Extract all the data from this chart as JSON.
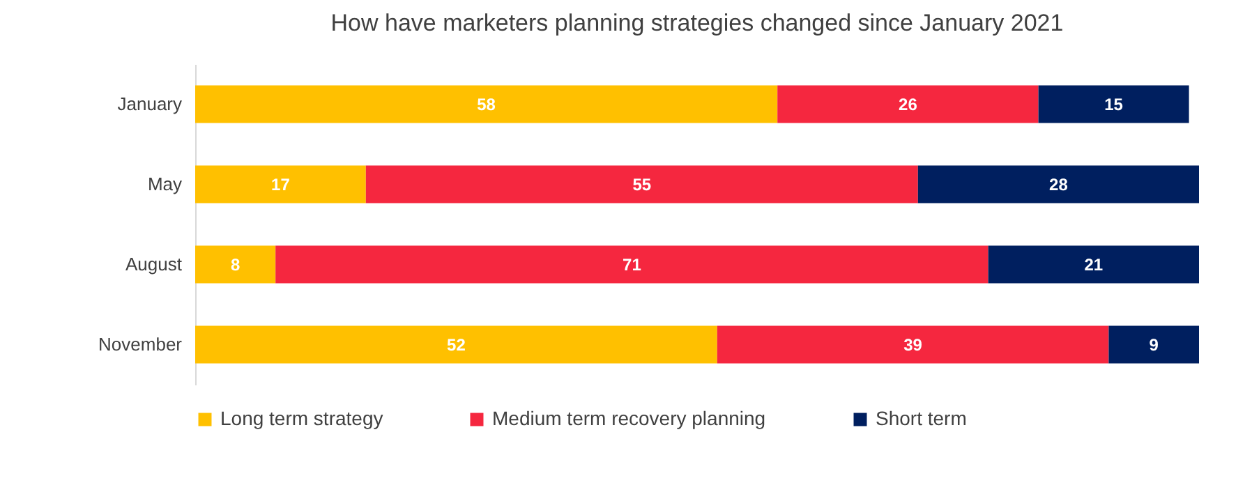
{
  "chart_data": {
    "type": "bar",
    "orientation": "horizontal",
    "stacked": true,
    "title": "How have marketers planning strategies changed since January 2021",
    "categories": [
      "January",
      "May",
      "August",
      "November"
    ],
    "series": [
      {
        "name": "Long term strategy",
        "color": "#ffc000",
        "values": [
          58,
          17,
          8,
          52
        ]
      },
      {
        "name": "Medium term recovery planning",
        "color": "#f5273f",
        "values": [
          26,
          55,
          71,
          39
        ]
      },
      {
        "name": "Short term",
        "color": "#001f5f",
        "values": [
          15,
          28,
          21,
          9
        ]
      }
    ],
    "data_labels": true,
    "legend": "bottom"
  }
}
